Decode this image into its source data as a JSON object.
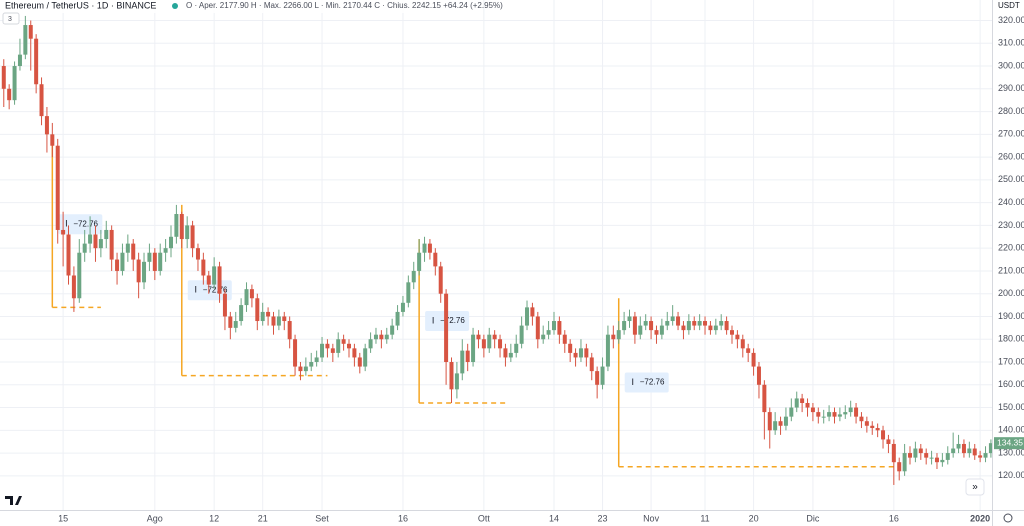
{
  "chart_data": {
    "type": "candlestick",
    "title": "Ethereum / TetherUS · 1D · BINANCE",
    "subtitle": "O · Aper. 2177.90  H · Max. 2266.00  L · Min. 2170.44  C · Chius. 2242.15  +64.24 (+2.95%)",
    "indicators": "3",
    "currency": "USDT",
    "up_color": "#6ba583",
    "down_color": "#d75442",
    "grid": true,
    "xlim": [
      -0.7,
      183.2
    ],
    "ylim": [
      105,
      329
    ],
    "yticks": [
      {
        "value": 120,
        "label": "120.00"
      },
      {
        "value": 130,
        "label": "130.00"
      },
      {
        "value": 140,
        "label": "140.00"
      },
      {
        "value": 150,
        "label": "150.00"
      },
      {
        "value": 160,
        "label": "160.00"
      },
      {
        "value": 170,
        "label": "170.00"
      },
      {
        "value": 180,
        "label": "180.00"
      },
      {
        "value": 190,
        "label": "190.00"
      },
      {
        "value": 200,
        "label": "200.00"
      },
      {
        "value": 210,
        "label": "210.00"
      },
      {
        "value": 220,
        "label": "220.00"
      },
      {
        "value": 230,
        "label": "230.00"
      },
      {
        "value": 240,
        "label": "240.00"
      },
      {
        "value": 250,
        "label": "250.00"
      },
      {
        "value": 260,
        "label": "260.00"
      },
      {
        "value": 270,
        "label": "270.00"
      },
      {
        "value": 280,
        "label": "280.00"
      },
      {
        "value": 290,
        "label": "290.00"
      },
      {
        "value": 300,
        "label": "300.00"
      },
      {
        "value": 310,
        "label": "310.00"
      },
      {
        "value": 320,
        "label": "320.00"
      }
    ],
    "xticks": [
      {
        "value": 11,
        "label": "15"
      },
      {
        "value": 28,
        "label": "Ago"
      },
      {
        "value": 39,
        "label": "12"
      },
      {
        "value": 48,
        "label": "21"
      },
      {
        "value": 59,
        "label": "Set"
      },
      {
        "value": 74,
        "label": "16"
      },
      {
        "value": 89,
        "label": "Ott"
      },
      {
        "value": 102,
        "label": "14"
      },
      {
        "value": 111,
        "label": "23"
      },
      {
        "value": 120,
        "label": "Nov"
      },
      {
        "value": 130,
        "label": "11"
      },
      {
        "value": 139,
        "label": "20"
      },
      {
        "value": 150,
        "label": "Dic"
      },
      {
        "value": 165,
        "label": "16"
      },
      {
        "value": 181,
        "label": "2020"
      }
    ],
    "ohlc": [
      [
        300,
        303,
        282,
        290
      ],
      [
        290,
        292,
        281,
        285
      ],
      [
        285,
        302,
        283,
        300
      ],
      [
        300,
        312,
        298,
        305
      ],
      [
        305,
        322,
        303,
        318
      ],
      [
        318,
        320,
        298,
        312
      ],
      [
        312,
        314,
        288,
        292
      ],
      [
        292,
        295,
        274,
        278
      ],
      [
        278,
        282,
        262,
        270
      ],
      [
        270,
        275,
        260,
        265
      ],
      [
        265,
        268,
        222,
        228
      ],
      [
        228,
        236,
        212,
        226
      ],
      [
        226,
        230,
        204,
        208
      ],
      [
        208,
        212,
        192,
        198
      ],
      [
        198,
        224,
        196,
        218
      ],
      [
        218,
        228,
        214,
        222
      ],
      [
        222,
        234,
        218,
        226
      ],
      [
        226,
        230,
        214,
        220
      ],
      [
        220,
        228,
        216,
        224
      ],
      [
        224,
        232,
        220,
        228
      ],
      [
        228,
        230,
        210,
        215
      ],
      [
        215,
        218,
        204,
        210
      ],
      [
        210,
        222,
        208,
        218
      ],
      [
        218,
        226,
        214,
        222
      ],
      [
        222,
        224,
        210,
        215
      ],
      [
        215,
        218,
        198,
        205
      ],
      [
        205,
        218,
        202,
        214
      ],
      [
        214,
        222,
        210,
        218
      ],
      [
        218,
        220,
        206,
        210
      ],
      [
        210,
        222,
        208,
        218
      ],
      [
        218,
        224,
        214,
        220
      ],
      [
        220,
        230,
        216,
        225
      ],
      [
        225,
        239,
        222,
        235
      ],
      [
        235,
        236,
        220,
        224
      ],
      [
        224,
        234,
        220,
        230
      ],
      [
        230,
        232,
        216,
        220
      ],
      [
        220,
        222,
        210,
        215
      ],
      [
        215,
        218,
        204,
        208
      ],
      [
        208,
        210,
        200,
        204
      ],
      [
        204,
        216,
        202,
        212
      ],
      [
        212,
        214,
        196,
        200
      ],
      [
        200,
        202,
        184,
        190
      ],
      [
        190,
        192,
        180,
        185
      ],
      [
        185,
        192,
        183,
        188
      ],
      [
        188,
        198,
        186,
        195
      ],
      [
        195,
        205,
        192,
        202
      ],
      [
        202,
        204,
        194,
        198
      ],
      [
        198,
        200,
        184,
        188
      ],
      [
        188,
        196,
        186,
        192
      ],
      [
        192,
        194,
        186,
        190
      ],
      [
        190,
        192,
        182,
        186
      ],
      [
        186,
        193,
        184,
        190
      ],
      [
        190,
        192,
        184,
        188
      ],
      [
        188,
        190,
        176,
        180
      ],
      [
        180,
        182,
        164,
        168
      ],
      [
        168,
        170,
        162,
        166
      ],
      [
        166,
        172,
        164,
        168
      ],
      [
        168,
        174,
        166,
        170
      ],
      [
        170,
        175,
        168,
        172
      ],
      [
        172,
        181,
        170,
        178
      ],
      [
        178,
        180,
        172,
        176
      ],
      [
        176,
        178,
        170,
        174
      ],
      [
        174,
        183,
        172,
        180
      ],
      [
        180,
        182,
        175,
        178
      ],
      [
        178,
        180,
        172,
        176
      ],
      [
        176,
        178,
        168,
        172
      ],
      [
        172,
        174,
        165,
        168
      ],
      [
        168,
        178,
        166,
        176
      ],
      [
        176,
        183,
        174,
        180
      ],
      [
        180,
        185,
        178,
        182
      ],
      [
        182,
        184,
        176,
        180
      ],
      [
        180,
        185,
        178,
        182
      ],
      [
        182,
        189,
        180,
        186
      ],
      [
        186,
        195,
        184,
        192
      ],
      [
        192,
        199,
        190,
        196
      ],
      [
        196,
        208,
        194,
        205
      ],
      [
        205,
        214,
        202,
        210
      ],
      [
        210,
        224,
        208,
        218
      ],
      [
        218,
        225,
        214,
        222
      ],
      [
        222,
        224,
        215,
        218
      ],
      [
        218,
        220,
        208,
        212
      ],
      [
        212,
        214,
        196,
        200
      ],
      [
        200,
        202,
        160,
        170
      ],
      [
        170,
        172,
        152,
        158
      ],
      [
        158,
        170,
        154,
        165
      ],
      [
        165,
        180,
        162,
        175
      ],
      [
        175,
        178,
        166,
        170
      ],
      [
        170,
        185,
        168,
        182
      ],
      [
        182,
        184,
        176,
        180
      ],
      [
        180,
        182,
        172,
        176
      ],
      [
        176,
        185,
        174,
        182
      ],
      [
        182,
        184,
        176,
        180
      ],
      [
        180,
        182,
        172,
        176
      ],
      [
        176,
        178,
        168,
        172
      ],
      [
        172,
        178,
        170,
        174
      ],
      [
        174,
        182,
        172,
        178
      ],
      [
        178,
        190,
        176,
        186
      ],
      [
        186,
        197,
        184,
        194
      ],
      [
        194,
        196,
        186,
        190
      ],
      [
        190,
        192,
        176,
        180
      ],
      [
        180,
        186,
        178,
        182
      ],
      [
        182,
        188,
        180,
        184
      ],
      [
        184,
        192,
        182,
        188
      ],
      [
        188,
        190,
        178,
        182
      ],
      [
        182,
        184,
        174,
        178
      ],
      [
        178,
        180,
        170,
        174
      ],
      [
        174,
        176,
        168,
        172
      ],
      [
        172,
        180,
        170,
        176
      ],
      [
        176,
        178,
        168,
        172
      ],
      [
        172,
        174,
        162,
        166
      ],
      [
        166,
        168,
        154,
        160
      ],
      [
        160,
        172,
        158,
        168
      ],
      [
        168,
        186,
        166,
        182
      ],
      [
        182,
        186,
        176,
        180
      ],
      [
        180,
        188,
        178,
        184
      ],
      [
        184,
        192,
        182,
        188
      ],
      [
        188,
        193,
        185,
        190
      ],
      [
        190,
        192,
        178,
        182
      ],
      [
        182,
        190,
        180,
        186
      ],
      [
        186,
        191,
        184,
        188
      ],
      [
        188,
        190,
        180,
        184
      ],
      [
        184,
        186,
        178,
        182
      ],
      [
        182,
        189,
        180,
        186
      ],
      [
        186,
        192,
        184,
        188
      ],
      [
        188,
        195,
        186,
        190
      ],
      [
        190,
        192,
        184,
        186
      ],
      [
        186,
        188,
        180,
        184
      ],
      [
        184,
        191,
        182,
        188
      ],
      [
        188,
        190,
        184,
        186
      ],
      [
        186,
        191,
        184,
        188
      ],
      [
        188,
        190,
        182,
        186
      ],
      [
        186,
        188,
        182,
        184
      ],
      [
        184,
        189,
        182,
        186
      ],
      [
        186,
        191,
        184,
        188
      ],
      [
        188,
        190,
        182,
        184
      ],
      [
        184,
        186,
        178,
        182
      ],
      [
        182,
        184,
        176,
        180
      ],
      [
        180,
        182,
        172,
        176
      ],
      [
        176,
        178,
        170,
        174
      ],
      [
        174,
        176,
        164,
        168
      ],
      [
        168,
        170,
        154,
        160
      ],
      [
        160,
        162,
        136,
        148
      ],
      [
        148,
        150,
        132,
        140
      ],
      [
        140,
        148,
        138,
        144
      ],
      [
        144,
        146,
        138,
        142
      ],
      [
        142,
        150,
        140,
        146
      ],
      [
        146,
        154,
        144,
        150
      ],
      [
        150,
        157,
        148,
        154
      ],
      [
        154,
        156,
        148,
        152
      ],
      [
        152,
        154,
        146,
        150
      ],
      [
        150,
        152,
        144,
        148
      ],
      [
        148,
        150,
        143,
        146
      ],
      [
        146,
        149,
        143,
        146
      ],
      [
        146,
        151,
        144,
        148
      ],
      [
        148,
        150,
        143,
        146
      ],
      [
        146,
        150,
        144,
        147
      ],
      [
        147,
        151,
        145,
        148
      ],
      [
        148,
        153,
        146,
        150
      ],
      [
        150,
        152,
        143,
        146
      ],
      [
        146,
        148,
        141,
        144
      ],
      [
        144,
        146,
        139,
        142
      ],
      [
        142,
        144,
        138,
        141
      ],
      [
        141,
        143,
        137,
        140
      ],
      [
        140,
        142,
        132,
        136
      ],
      [
        136,
        138,
        130,
        134
      ],
      [
        134,
        136,
        116,
        126
      ],
      [
        126,
        128,
        118,
        122
      ],
      [
        122,
        134,
        120,
        130
      ],
      [
        130,
        133,
        125,
        128
      ],
      [
        128,
        135,
        126,
        132
      ],
      [
        132,
        134,
        127,
        130
      ],
      [
        130,
        132,
        125,
        128
      ],
      [
        128,
        131,
        125,
        128
      ],
      [
        128,
        130,
        123,
        126
      ],
      [
        126,
        130,
        124,
        127
      ],
      [
        127,
        133,
        125,
        130
      ],
      [
        130,
        139,
        128,
        132
      ],
      [
        132,
        138,
        130,
        134
      ],
      [
        134,
        136,
        128,
        130
      ],
      [
        130,
        135,
        128,
        132
      ],
      [
        132,
        134,
        127,
        129
      ],
      [
        129,
        131,
        126,
        128
      ],
      [
        128,
        133,
        126,
        130
      ],
      [
        130,
        136,
        128,
        134.35
      ]
    ],
    "measures": [
      {
        "start": 9,
        "end": 18,
        "top": 267,
        "bottom": 194,
        "label": "−72.76"
      },
      {
        "start": 33,
        "end": 60,
        "top": 239,
        "bottom": 164,
        "label": "−72.76"
      },
      {
        "start": 77,
        "end": 93,
        "top": 224,
        "bottom": 152,
        "label": "−72.76"
      },
      {
        "start": 114,
        "end": 165,
        "top": 198,
        "bottom": 124,
        "label": "−72.76"
      }
    ],
    "measure_color": "#f5a623"
  }
}
